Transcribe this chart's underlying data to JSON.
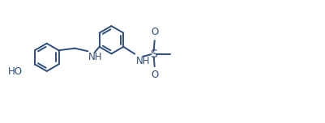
{
  "bg_color": "#ffffff",
  "line_color": "#2d4d7c",
  "text_color": "#2d4d7c",
  "figsize": [
    4.01,
    1.52
  ],
  "dpi": 100,
  "bond_lw": 1.4,
  "font_size": 8.5,
  "r": 0.33,
  "xlim": [
    -0.3,
    5.8
  ],
  "ylim": [
    -1.55,
    1.35
  ]
}
